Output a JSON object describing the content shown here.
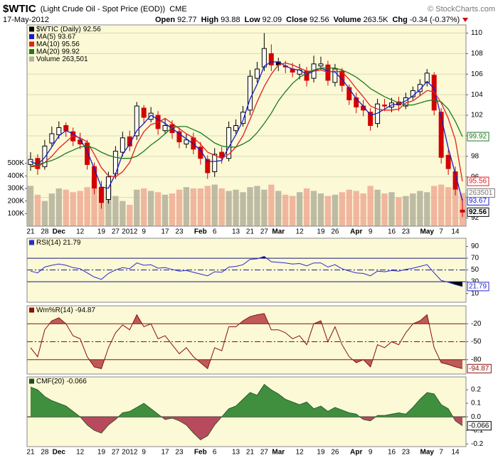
{
  "header": {
    "symbol": "$WTIC",
    "name": "(Light Crude Oil - Spot Price (EOD))",
    "exchange": "CME",
    "copyright": "© StockCharts.com",
    "date": "17-May-2012",
    "quote": [
      {
        "label": "Open",
        "value": "92.77"
      },
      {
        "label": "High",
        "value": "93.88"
      },
      {
        "label": "Low",
        "value": "92.09"
      },
      {
        "label": "Close",
        "value": "92.56"
      },
      {
        "label": "Volume",
        "value": "263.5K"
      },
      {
        "label": "Chg",
        "value": "-0.34 (-0.37%)"
      }
    ]
  },
  "chart_data": [
    {
      "type": "candlestick",
      "categories": [
        "21",
        null,
        "28",
        null,
        "Dec",
        null,
        null,
        "12",
        null,
        null,
        "19",
        null,
        "27",
        null,
        "2012",
        null,
        "9",
        null,
        null,
        "17",
        null,
        "23",
        null,
        null,
        "Feb",
        null,
        "6",
        null,
        null,
        "13",
        null,
        "21",
        null,
        "27",
        null,
        "Mar",
        null,
        null,
        "12",
        null,
        null,
        "19",
        null,
        "26",
        null,
        null,
        "Apr",
        null,
        "9",
        null,
        null,
        "16",
        null,
        "23",
        null,
        null,
        "May",
        null,
        "7",
        null,
        "14",
        null
      ],
      "series": [
        {
          "name": "$WTIC (Daily)",
          "color": "#000000",
          "down_color": "#d40000",
          "open": [
            97.2,
            97.8,
            97.0,
            99.3,
            100.1,
            101.0,
            100.4,
            99.6,
            99.3,
            97.0,
            95.0,
            93.8,
            96.3,
            98.4,
            99.9,
            100.0,
            102.7,
            101.6,
            102.0,
            100.5,
            101.1,
            100.4,
            99.2,
            99.8,
            98.9,
            97.7,
            96.5,
            98.4,
            97.8,
            100.5,
            101.2,
            102.5,
            105.6,
            106.7,
            108.0,
            107.2,
            106.8,
            106.5,
            106.0,
            106.3,
            105.6,
            106.8,
            106.9,
            105.2,
            106.3,
            104.7,
            103.7,
            102.9,
            102.3,
            101.2,
            103.0,
            102.8,
            103.3,
            102.9,
            103.8,
            104.3,
            105.2,
            105.9,
            102.3,
            98.1,
            96.5,
            92.77
          ],
          "high": [
            98.4,
            98.2,
            99.6,
            100.9,
            101.4,
            101.3,
            100.8,
            100.3,
            99.6,
            97.4,
            95.6,
            96.5,
            99.0,
            100.4,
            100.5,
            103.3,
            103.0,
            102.8,
            102.4,
            101.7,
            101.5,
            100.8,
            100.2,
            100.3,
            99.4,
            98.1,
            98.8,
            98.9,
            101.4,
            101.6,
            102.9,
            106.4,
            107.2,
            110.0,
            108.9,
            107.6,
            107.3,
            107.1,
            107.0,
            106.7,
            107.8,
            107.7,
            107.3,
            107.0,
            106.6,
            105.0,
            104.2,
            103.5,
            102.7,
            103.6,
            103.6,
            103.7,
            103.8,
            104.2,
            104.8,
            105.5,
            106.5,
            106.2,
            102.7,
            98.6,
            97.0,
            93.88
          ],
          "low": [
            96.6,
            96.2,
            96.7,
            98.9,
            99.7,
            99.9,
            99.0,
            98.7,
            96.7,
            94.3,
            92.9,
            93.4,
            95.8,
            98.0,
            98.5,
            99.6,
            101.2,
            101.3,
            100.1,
            100.2,
            99.7,
            98.8,
            98.8,
            98.2,
            97.2,
            95.8,
            96.0,
            97.3,
            97.5,
            100.2,
            100.9,
            102.0,
            105.2,
            106.3,
            106.3,
            106.3,
            106.1,
            105.7,
            105.5,
            104.8,
            105.2,
            106.4,
            104.9,
            104.8,
            104.3,
            103.0,
            102.2,
            101.9,
            100.5,
            100.8,
            102.4,
            102.3,
            102.4,
            102.6,
            103.5,
            103.9,
            104.8,
            102.0,
            97.3,
            96.2,
            94.2,
            92.09
          ],
          "close": [
            97.7,
            96.8,
            99.0,
            100.2,
            100.8,
            100.5,
            99.5,
            99.2,
            97.2,
            94.9,
            93.5,
            96.0,
            98.5,
            99.8,
            99.0,
            102.9,
            101.8,
            102.2,
            100.7,
            101.0,
            100.3,
            99.4,
            99.6,
            98.7,
            97.8,
            96.4,
            98.2,
            97.9,
            100.8,
            101.0,
            102.3,
            105.8,
            106.5,
            108.5,
            106.9,
            106.9,
            106.7,
            106.2,
            106.4,
            105.4,
            107.0,
            107.0,
            105.4,
            106.5,
            104.9,
            103.5,
            102.8,
            102.5,
            101.0,
            103.1,
            102.9,
            103.2,
            103.0,
            103.7,
            104.4,
            105.0,
            106.1,
            102.5,
            97.9,
            96.8,
            94.8,
            92.56
          ]
        },
        {
          "name": "MA(5)",
          "color": "#1a1acc",
          "values": [
            97.5,
            97.2,
            97.9,
            98.9,
            100.0,
            100.5,
            100.2,
            99.7,
            98.5,
            96.8,
            95.0,
            94.9,
            96.3,
            98.2,
            99.2,
            100.5,
            101.2,
            102.0,
            101.6,
            101.2,
            100.7,
            100.2,
            99.7,
            99.2,
            98.6,
            97.5,
            97.5,
            97.6,
            98.9,
            100.1,
            101.5,
            103.6,
            105.0,
            106.8,
            107.2,
            107.2,
            106.8,
            106.5,
            106.4,
            106.0,
            106.3,
            106.6,
            106.3,
            106.2,
            105.5,
            104.6,
            103.6,
            102.9,
            102.0,
            102.2,
            102.6,
            103.0,
            103.1,
            103.4,
            103.9,
            104.5,
            105.3,
            104.6,
            101.8,
            98.8,
            96.3,
            93.67
          ]
        },
        {
          "name": "MA(10)",
          "color": "#e02020",
          "values": [
            97.0,
            97.0,
            97.4,
            98.0,
            98.8,
            99.4,
            100.0,
            99.8,
            99.4,
            98.2,
            96.9,
            96.1,
            96.0,
            96.5,
            97.4,
            99.2,
            100.4,
            101.1,
            101.3,
            101.7,
            101.2,
            100.7,
            100.2,
            99.8,
            99.2,
            98.4,
            98.1,
            97.8,
            98.2,
            98.9,
            100.0,
            101.6,
            103.3,
            104.8,
            106.0,
            106.9,
            107.1,
            106.9,
            106.6,
            106.3,
            106.3,
            106.4,
            106.2,
            106.3,
            106.2,
            105.5,
            104.6,
            103.8,
            102.9,
            102.6,
            102.5,
            102.5,
            102.6,
            103.2,
            103.4,
            103.9,
            104.4,
            104.3,
            103.2,
            101.7,
            99.6,
            95.56
          ]
        },
        {
          "name": "MA(20)",
          "color": "#1e7a1e",
          "values": [
            97.0,
            97.2,
            97.4,
            97.6,
            97.9,
            98.3,
            98.6,
            98.9,
            99.0,
            98.8,
            98.4,
            98.1,
            97.9,
            97.8,
            97.8,
            98.0,
            98.5,
            99.1,
            99.6,
            100.2,
            100.8,
            100.9,
            100.9,
            100.6,
            100.3,
            99.8,
            99.3,
            99.0,
            98.9,
            98.9,
            99.2,
            99.6,
            100.3,
            101.2,
            102.2,
            103.4,
            104.3,
            105.1,
            105.7,
            106.1,
            106.4,
            106.6,
            106.6,
            106.6,
            106.4,
            106.1,
            105.7,
            105.2,
            104.6,
            104.2,
            103.8,
            103.5,
            103.2,
            103.0,
            103.0,
            103.2,
            103.4,
            103.5,
            103.3,
            102.6,
            101.4,
            99.92
          ]
        }
      ],
      "volume": {
        "name": "Volume",
        "color": "#b3b09c",
        "down_color": "#eeaa94",
        "values": [
          320000,
          250000,
          200000,
          260000,
          300000,
          290000,
          270000,
          280000,
          310000,
          380000,
          300000,
          330000,
          240000,
          200000,
          170000,
          290000,
          300000,
          280000,
          270000,
          250000,
          260000,
          290000,
          310000,
          300000,
          300000,
          320000,
          330000,
          300000,
          280000,
          290000,
          270000,
          310000,
          320000,
          290000,
          330000,
          280000,
          250000,
          240000,
          270000,
          300000,
          280000,
          260000,
          240000,
          250000,
          270000,
          290000,
          280000,
          260000,
          320000,
          290000,
          260000,
          270000,
          230000,
          240000,
          260000,
          280000,
          270000,
          320000,
          330000,
          310000,
          300000,
          263501
        ],
        "value_labels": [
          null,
          null,
          null,
          null,
          null,
          null,
          null,
          null,
          null,
          null,
          null,
          null,
          null,
          null,
          null,
          null,
          null,
          null,
          null,
          null,
          null,
          null,
          null,
          null,
          null,
          null,
          null,
          null,
          null,
          null,
          null,
          null,
          null,
          null,
          null,
          null,
          null,
          null,
          null,
          null,
          null,
          null,
          null,
          null,
          null,
          null,
          null,
          null,
          null,
          null,
          null,
          null,
          null,
          null,
          null,
          null,
          null,
          null,
          null,
          null,
          null,
          "263,501"
        ]
      },
      "ylim": [
        91.2,
        110.8
      ],
      "yticks": [
        92,
        94,
        96,
        98,
        100,
        102,
        104,
        106,
        108,
        110
      ],
      "vol_lim": [
        0,
        1600000
      ],
      "vol_ticks": [
        {
          "value": 100000,
          "label": "100K"
        },
        {
          "value": 200000,
          "label": "200K"
        },
        {
          "value": 300000,
          "label": "300K"
        },
        {
          "value": 400000,
          "label": "400K"
        },
        {
          "value": 500000,
          "label": "500K"
        }
      ],
      "grid": true,
      "legend": "top-left"
    },
    {
      "type": "line",
      "series": [
        {
          "name": "RSI(14)",
          "color": "#2b2bcc",
          "values": [
            48,
            45,
            55,
            58,
            60,
            58,
            54,
            52,
            45,
            38,
            34,
            44,
            50,
            54,
            52,
            62,
            58,
            59,
            53,
            54,
            51,
            48,
            49,
            46,
            43,
            40,
            47,
            46,
            55,
            56,
            59,
            68,
            69,
            73,
            64,
            63,
            62,
            60,
            61,
            57,
            62,
            62,
            55,
            59,
            52,
            48,
            45,
            44,
            40,
            48,
            47,
            49,
            48,
            51,
            53,
            56,
            59,
            45,
            32,
            29,
            25,
            21.79
          ]
        }
      ],
      "ylim": [
        -5,
        104
      ],
      "yticks": [
        10,
        30,
        50,
        70,
        90
      ],
      "overbought": 70,
      "oversold": 30,
      "centerline": 50,
      "band_color": "#1a1a80",
      "fill_color": "#000000",
      "legend": "top-left"
    },
    {
      "type": "line",
      "series": [
        {
          "name": "Wm%R(14)",
          "color": "#8a1010",
          "values": [
            -60,
            -75,
            -30,
            -15,
            -10,
            -20,
            -40,
            -45,
            -75,
            -92,
            -95,
            -60,
            -35,
            -22,
            -30,
            -5,
            -25,
            -20,
            -45,
            -40,
            -55,
            -70,
            -60,
            -75,
            -85,
            -95,
            -60,
            -65,
            -25,
            -25,
            -15,
            -8,
            -5,
            -3,
            -30,
            -30,
            -35,
            -45,
            -40,
            -55,
            -20,
            -15,
            -50,
            -25,
            -55,
            -75,
            -85,
            -80,
            -92,
            -55,
            -60,
            -50,
            -55,
            -35,
            -20,
            -15,
            -5,
            -60,
            -85,
            -88,
            -92,
            -94.87
          ]
        }
      ],
      "ylim": [
        -104,
        10
      ],
      "yticks": [
        -80,
        -50,
        -20
      ],
      "overbought": -20,
      "oversold": -80,
      "centerline": -50,
      "band_color": "#8a1010",
      "fill_color": "#c05a5a",
      "legend": "top-left"
    },
    {
      "type": "area",
      "series": [
        {
          "name": "CMF(20)",
          "color": "#1f4f1f",
          "values": [
            0.22,
            0.2,
            0.15,
            0.12,
            0.1,
            0.08,
            0.04,
            0.0,
            -0.06,
            -0.1,
            -0.12,
            -0.06,
            -0.02,
            0.03,
            0.04,
            0.07,
            0.1,
            0.06,
            0.02,
            -0.02,
            -0.01,
            -0.03,
            -0.06,
            -0.12,
            -0.17,
            -0.14,
            -0.06,
            0.0,
            0.06,
            0.08,
            0.13,
            0.18,
            0.16,
            0.24,
            0.2,
            0.17,
            0.13,
            0.11,
            0.09,
            0.11,
            0.06,
            0.08,
            0.04,
            0.07,
            0.05,
            0.03,
            0.02,
            -0.02,
            -0.03,
            0.01,
            0.01,
            0.02,
            0.03,
            0.02,
            0.07,
            0.13,
            0.18,
            0.17,
            0.09,
            0.06,
            -0.03,
            -0.066
          ]
        }
      ],
      "ylim": [
        -0.22,
        0.295
      ],
      "yticks": [
        -0.2,
        -0.1,
        {
          "value": 0,
          "label": "0.0"
        },
        0.1,
        0.2
      ],
      "positive_color": "#3f8f3f",
      "negative_color": "#b84a5e",
      "legend": "top-left"
    }
  ]
}
